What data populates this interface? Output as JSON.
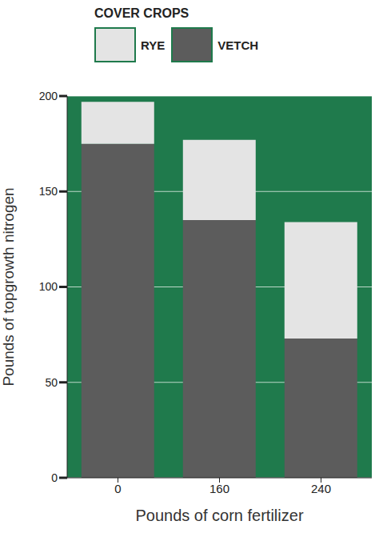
{
  "chart_data": {
    "type": "bar",
    "title": "COVER CROPS",
    "x_label": "Pounds of corn fertilizer",
    "y_label": "Pounds of topgrowth nitrogen",
    "categories": [
      "0",
      "160",
      "240"
    ],
    "series": [
      {
        "name": "RYE",
        "color": "#e4e4e4",
        "values": [
          22,
          42,
          61
        ]
      },
      {
        "name": "VETCH",
        "color": "#5c5c5c",
        "values": [
          175,
          135,
          73
        ]
      }
    ],
    "stacked": true,
    "ylim": [
      0,
      200
    ],
    "yticks": [
      0,
      50,
      100,
      150,
      200
    ],
    "grid": true,
    "legend": "top-left"
  }
}
